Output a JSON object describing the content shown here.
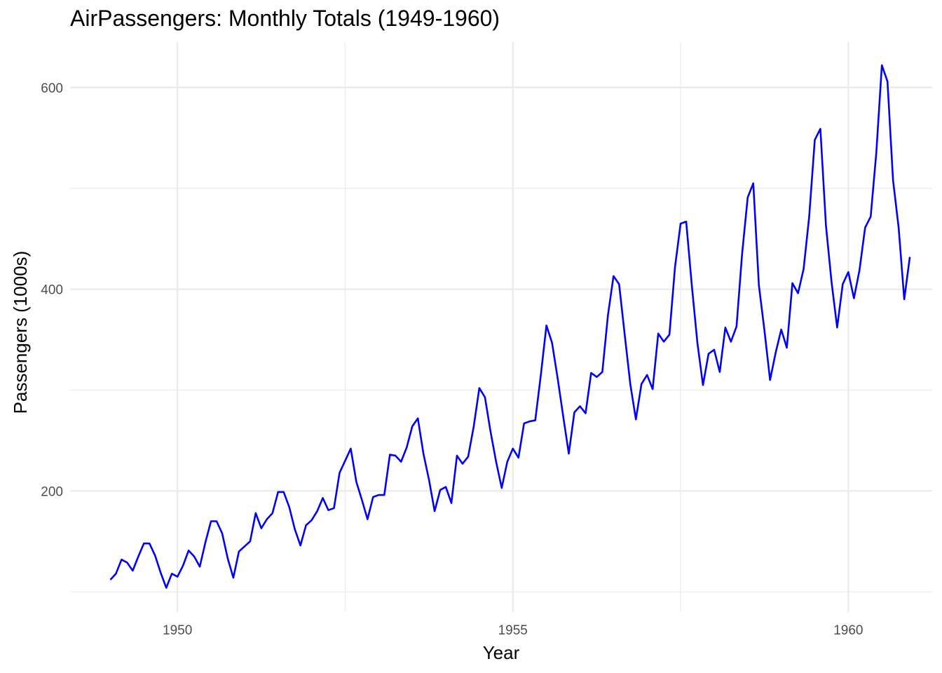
{
  "chart_data": {
    "type": "line",
    "title": "AirPassengers: Monthly Totals (1949-1960)",
    "xlabel": "Year",
    "ylabel": "Passengers (1000s)",
    "xlim": [
      1948.4,
      1961.25
    ],
    "ylim": [
      80,
      645
    ],
    "x_ticks": [
      1950,
      1955,
      1960
    ],
    "x_tick_labels": [
      "1950",
      "1955",
      "1960"
    ],
    "x_minor_ticks": [
      1952.5,
      1957.5
    ],
    "y_ticks": [
      200,
      400,
      600
    ],
    "y_tick_labels": [
      "200",
      "400",
      "600"
    ],
    "y_minor_ticks": [
      100,
      300,
      500
    ],
    "grid": true,
    "legend": "none",
    "x_start": 1949,
    "x_step": 0.0833333,
    "series": [
      {
        "color": "#0000ff",
        "values": [
          112,
          118,
          132,
          129,
          121,
          135,
          148,
          148,
          136,
          119,
          104,
          118,
          115,
          126,
          141,
          135,
          125,
          149,
          170,
          170,
          158,
          133,
          114,
          140,
          145,
          150,
          178,
          163,
          172,
          178,
          199,
          199,
          184,
          162,
          146,
          166,
          171,
          180,
          193,
          181,
          183,
          218,
          230,
          242,
          209,
          191,
          172,
          194,
          196,
          196,
          236,
          235,
          229,
          243,
          264,
          272,
          237,
          211,
          180,
          201,
          204,
          188,
          235,
          227,
          234,
          264,
          302,
          293,
          259,
          229,
          203,
          229,
          242,
          233,
          267,
          269,
          270,
          315,
          364,
          347,
          312,
          274,
          237,
          278,
          284,
          277,
          317,
          313,
          318,
          374,
          413,
          405,
          355,
          306,
          271,
          306,
          315,
          301,
          356,
          348,
          355,
          422,
          465,
          467,
          404,
          347,
          305,
          336,
          340,
          318,
          362,
          348,
          363,
          435,
          491,
          505,
          404,
          359,
          310,
          337,
          360,
          342,
          406,
          396,
          420,
          472,
          548,
          559,
          463,
          407,
          362,
          405,
          417,
          391,
          419,
          461,
          472,
          535,
          622,
          606,
          508,
          461,
          390,
          432
        ]
      }
    ]
  }
}
